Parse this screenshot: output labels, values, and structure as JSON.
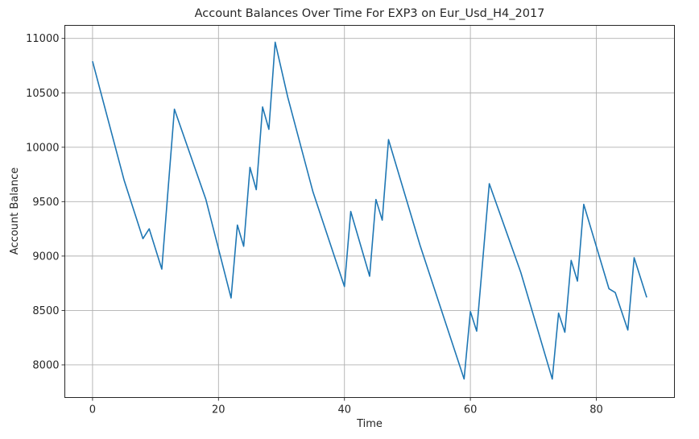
{
  "chart_data": {
    "type": "line",
    "title": "Account Balances Over Time For EXP3 on Eur_Usd_H4_2017",
    "xlabel": "Time",
    "ylabel": "Account Balance",
    "xlim": [
      -4.4,
      92.4
    ],
    "ylim": [
      7700,
      11120
    ],
    "xticks": [
      0,
      20,
      40,
      60,
      80
    ],
    "yticks": [
      8000,
      8500,
      9000,
      9500,
      10000,
      10500,
      11000
    ],
    "grid": true,
    "color": "#1f77b4",
    "series": [
      {
        "x": [
          0,
          5,
          8,
          9,
          11,
          13,
          18,
          22,
          23,
          24,
          25,
          26,
          27,
          28,
          29,
          31,
          35,
          40,
          41,
          44,
          45,
          46,
          47,
          52,
          59,
          60,
          61,
          63,
          68,
          73,
          74,
          75,
          76,
          77,
          78,
          82,
          83,
          85,
          86,
          88
        ],
        "values": [
          10790,
          9700,
          9160,
          9250,
          8880,
          10350,
          9520,
          8615,
          9285,
          9090,
          9815,
          9610,
          10370,
          10165,
          10965,
          10460,
          9590,
          8720,
          9410,
          8815,
          9520,
          9330,
          10070,
          9100,
          7870,
          8490,
          8310,
          9665,
          8850,
          7870,
          8475,
          8300,
          8960,
          8770,
          9475,
          8700,
          8665,
          8320,
          8985,
          8620
        ]
      }
    ]
  }
}
